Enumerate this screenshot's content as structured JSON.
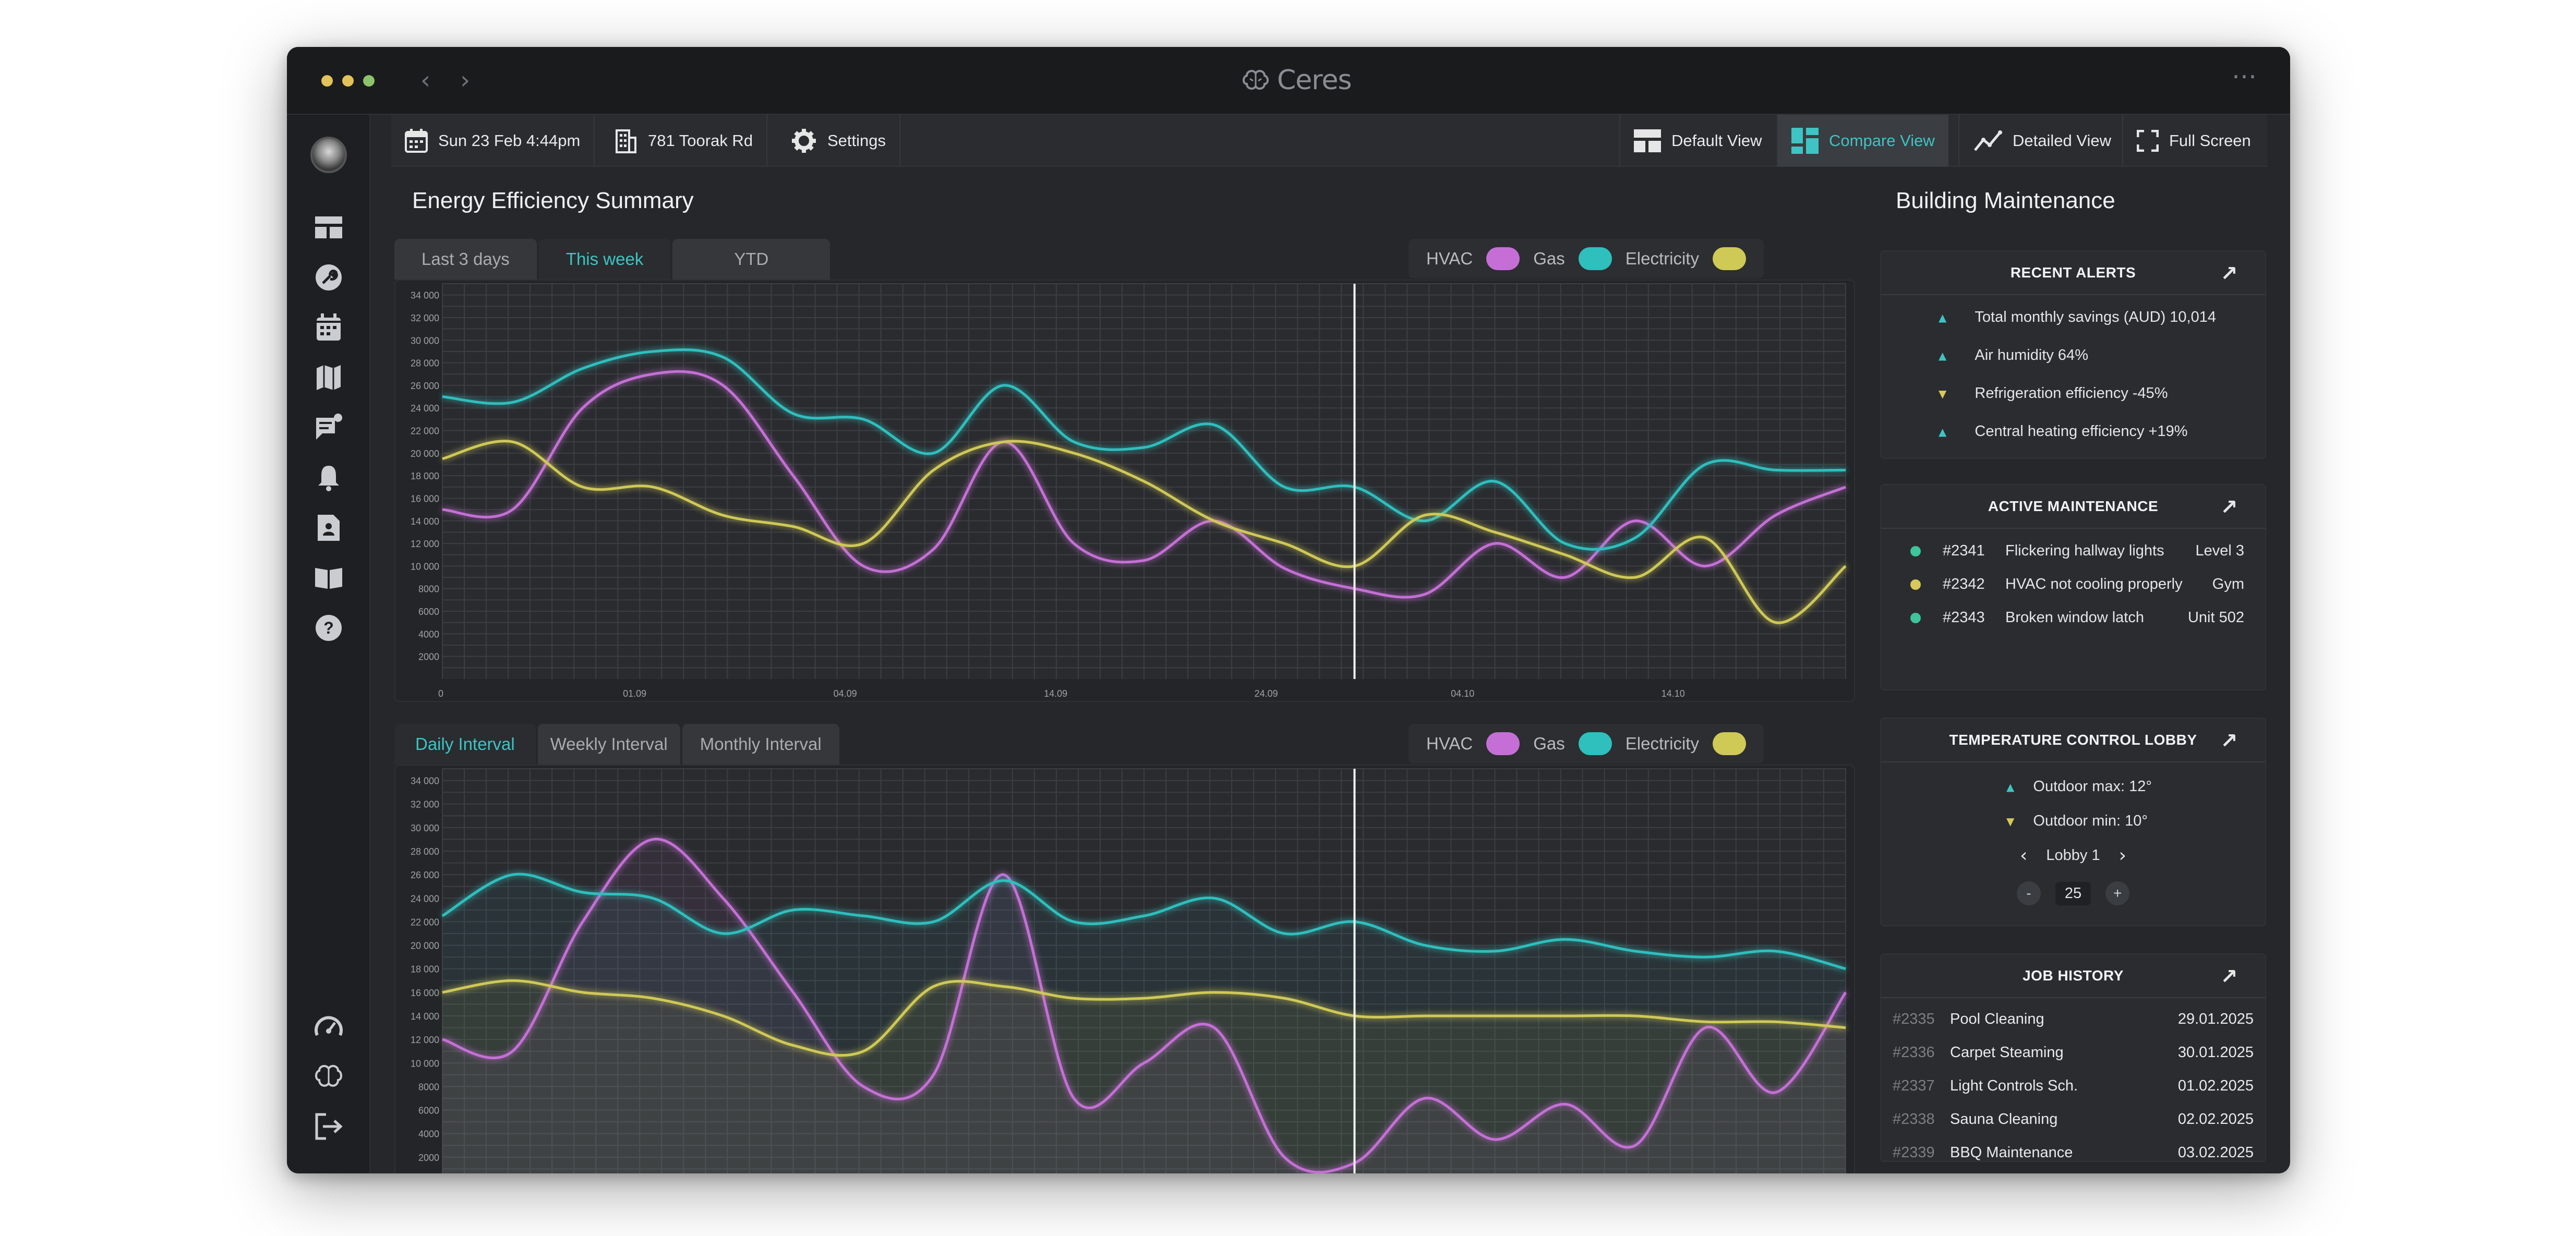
{
  "app": {
    "name": "Ceres"
  },
  "toolbar": {
    "date": "Sun 23 Feb 4:44pm",
    "address": "781 Toorak Rd",
    "settings": "Settings",
    "views": [
      "Default View",
      "Compare View",
      "Detailed View",
      "Full Screen"
    ],
    "active_view": "Compare View"
  },
  "sidebar": {
    "top_icons": [
      "dashboard-icon",
      "wrench-icon",
      "calendar-icon",
      "map-icon",
      "chat-icon",
      "bell-icon",
      "contact-icon",
      "book-icon",
      "help-icon"
    ],
    "bottom_icons": [
      "gauge-icon",
      "brain-icon",
      "logout-icon"
    ]
  },
  "efficiency": {
    "title": "Energy Efficiency Summary",
    "range_tabs": [
      "Last 3 days",
      "This week",
      "YTD"
    ],
    "active_range": "This week",
    "interval_tabs": [
      "Daily Interval",
      "Weekly Interval",
      "Monthly Interval"
    ],
    "active_interval": "Daily Interval",
    "legend": [
      {
        "label": "HVAC",
        "color": "#c56fd6"
      },
      {
        "label": "Gas",
        "color": "#2fbfbd"
      },
      {
        "label": "Electricity",
        "color": "#cfc956"
      }
    ]
  },
  "chart_data": [
    {
      "type": "line",
      "yticks": [
        2000,
        4000,
        6000,
        8000,
        10000,
        12000,
        14000,
        16000,
        18000,
        20000,
        22000,
        24000,
        26000,
        28000,
        30000,
        32000,
        34000
      ],
      "ytick_labels": [
        "2000",
        "4000",
        "6000",
        "8000",
        "10 000",
        "12 000",
        "14 000",
        "16 000",
        "18 000",
        "20 000",
        "22 000",
        "24 000",
        "26 000",
        "28 000",
        "30 000",
        "32 000",
        "34 000"
      ],
      "xtick_labels": [
        "0",
        "01.09",
        "04.09",
        "14.09",
        "24.09",
        "04.10",
        "14.10"
      ],
      "ylim": [
        0,
        35000
      ],
      "x": [
        0,
        5,
        10,
        15,
        20,
        25,
        30,
        35,
        40,
        45,
        50,
        55,
        60,
        65,
        70,
        75,
        80,
        85,
        90,
        95,
        100
      ],
      "grid": true,
      "cursor_x": 65,
      "series": [
        {
          "name": "HVAC",
          "values": [
            15000,
            15000,
            24000,
            27000,
            26000,
            18000,
            10000,
            11500,
            21000,
            12000,
            10500,
            14000,
            9800,
            8000,
            7500,
            12000,
            9000,
            14000,
            10000,
            14500,
            17000
          ]
        },
        {
          "name": "Gas",
          "values": [
            25000,
            24500,
            27500,
            29000,
            28500,
            23500,
            23000,
            20000,
            26000,
            21000,
            20500,
            22500,
            17000,
            17000,
            14000,
            17500,
            12000,
            12500,
            19000,
            18500,
            18500
          ]
        },
        {
          "name": "Electricity",
          "values": [
            19500,
            21000,
            17000,
            17000,
            14500,
            13500,
            12000,
            18500,
            21000,
            20000,
            17500,
            14000,
            12000,
            10000,
            14500,
            13000,
            11000,
            9000,
            12500,
            5000,
            10000
          ]
        }
      ]
    },
    {
      "type": "area",
      "yticks": [
        2000,
        4000,
        6000,
        8000,
        10000,
        12000,
        14000,
        16000,
        18000,
        20000,
        22000,
        24000,
        26000,
        28000,
        30000,
        32000,
        34000
      ],
      "ytick_labels": [
        "2000",
        "4000",
        "6000",
        "8000",
        "10 000",
        "12 000",
        "14 000",
        "16 000",
        "18 000",
        "20 000",
        "22 000",
        "24 000",
        "26 000",
        "28 000",
        "30 000",
        "32 000",
        "34 000"
      ],
      "ylim": [
        0,
        35000
      ],
      "x": [
        0,
        5,
        10,
        15,
        20,
        25,
        30,
        35,
        40,
        45,
        50,
        55,
        60,
        65,
        70,
        75,
        80,
        85,
        90,
        95,
        100
      ],
      "grid": true,
      "cursor_x": 65,
      "series": [
        {
          "name": "HVAC",
          "values": [
            12000,
            11000,
            22000,
            29000,
            24000,
            16000,
            8000,
            9000,
            26000,
            7000,
            10000,
            13000,
            2000,
            1500,
            7000,
            3500,
            6500,
            3000,
            13000,
            7500,
            16000
          ]
        },
        {
          "name": "Gas",
          "values": [
            22500,
            26000,
            24500,
            24000,
            21000,
            23000,
            22500,
            22000,
            25500,
            22000,
            22500,
            24000,
            21000,
            22000,
            20000,
            19500,
            20500,
            19500,
            19000,
            19500,
            18000
          ]
        },
        {
          "name": "Electricity",
          "values": [
            16000,
            17000,
            16000,
            15500,
            14000,
            11500,
            11000,
            16500,
            16500,
            15500,
            15500,
            16000,
            15500,
            14000,
            14000,
            14000,
            14000,
            14000,
            13500,
            13500,
            13000
          ]
        }
      ]
    }
  ],
  "maintenance": {
    "title": "Building Maintenance",
    "recent_alerts": {
      "title": "RECENT ALERTS",
      "items": [
        {
          "dir": "up",
          "text": "Total monthly savings (AUD) 10,014",
          "color": "#3ec4c4"
        },
        {
          "dir": "up",
          "text": "Air humidity 64%",
          "color": "#3ec4c4"
        },
        {
          "dir": "down",
          "text": "Refrigeration efficiency -45%",
          "color": "#d8c85a"
        },
        {
          "dir": "up",
          "text": "Central heating efficiency +19%",
          "color": "#3ec4c4"
        }
      ]
    },
    "active_maintenance": {
      "title": "ACTIVE MAINTENANCE",
      "items": [
        {
          "id": "#2341",
          "task": "Flickering hallway lights",
          "location": "Level 3",
          "color": "#3ec49a"
        },
        {
          "id": "#2342",
          "task": "HVAC not cooling properly",
          "location": "Gym",
          "color": "#d8c85a"
        },
        {
          "id": "#2343",
          "task": "Broken window latch",
          "location": "Unit 502",
          "color": "#3ec49a"
        }
      ]
    },
    "temperature": {
      "title": "TEMPERATURE CONTROL LOBBY",
      "outdoor_max": "Outdoor max: 12°",
      "outdoor_min": "Outdoor min: 10°",
      "location": "Lobby 1",
      "value": "25",
      "minus": "-",
      "plus": "+"
    },
    "job_history": {
      "title": "JOB HISTORY",
      "items": [
        {
          "id": "#2335",
          "name": "Pool Cleaning",
          "date": "29.01.2025"
        },
        {
          "id": "#2336",
          "name": "Carpet Steaming",
          "date": "30.01.2025"
        },
        {
          "id": "#2337",
          "name": "Light Controls Sch.",
          "date": "01.02.2025"
        },
        {
          "id": "#2338",
          "name": "Sauna Cleaning",
          "date": "02.02.2025"
        },
        {
          "id": "#2339",
          "name": "BBQ Maintenance",
          "date": "03.02.2025"
        }
      ]
    }
  }
}
